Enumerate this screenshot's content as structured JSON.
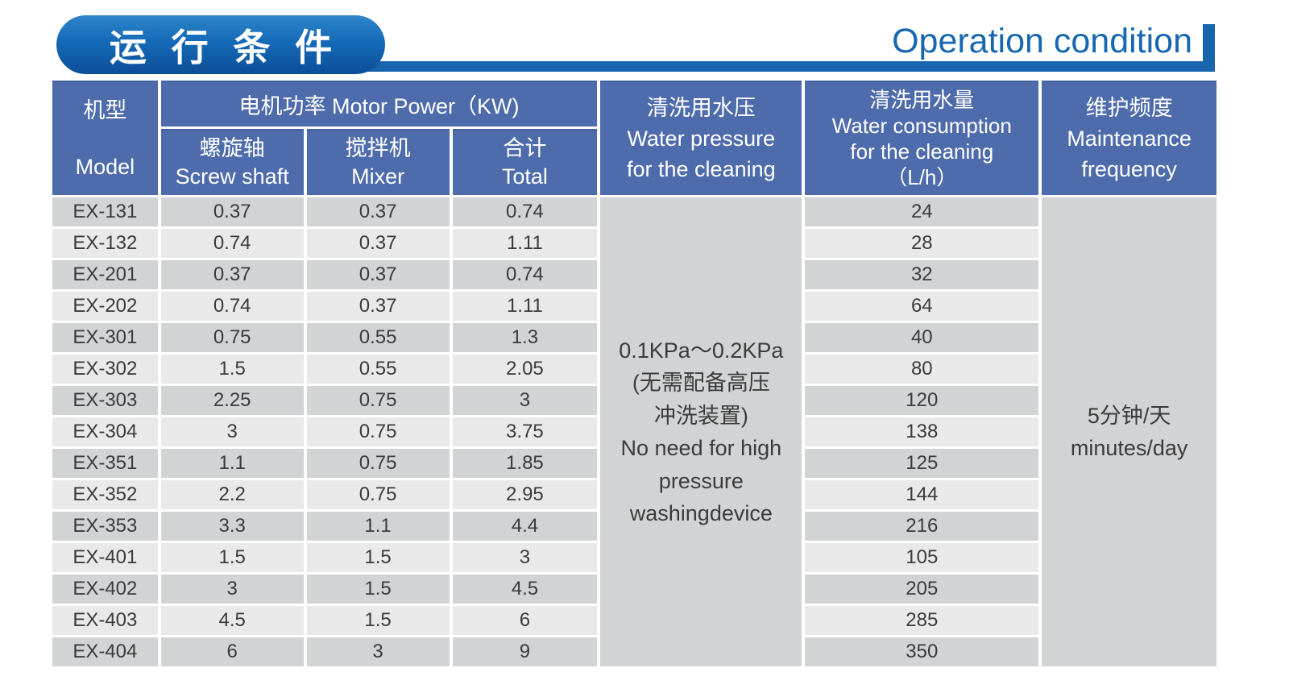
{
  "page": {
    "title_cn": "运 行 条 件",
    "title_en": "Operation condition"
  },
  "colors": {
    "header_bg": "#4e6cab",
    "row_dark": "#d2d3d5",
    "row_light": "#e9e9ea",
    "accent_blue": "#1864ad",
    "title_text_blue": "#1767b1",
    "pill_gradient_top": "#2e85c8",
    "pill_gradient_bottom": "#0c4e96",
    "body_text": "#3b3b3b"
  },
  "table": {
    "headers": {
      "model": "机型\nModel",
      "motor_power_group": "电机功率  Motor Power（KW)",
      "screw_shaft": "螺旋轴\nScrew shaft",
      "mixer": "搅拌机\nMixer",
      "total": "合计\nTotal",
      "water_pressure": "清洗用水压\nWater pressure\nfor the cleaning",
      "water_consumption": "清洗用水量\nWater consumption\nfor the cleaning\n（L/h）",
      "maintenance": "维护频度\nMaintenance\nfrequency"
    },
    "merged_cells": {
      "water_pressure": "0.1KPa～0.2KPa\n(无需配备高压\n冲洗装置)\nNo need for high\npressure\nwashingdevice",
      "maintenance": "5分钟/天\nminutes/day"
    },
    "rows": [
      {
        "model": "EX-131",
        "screw_shaft": "0.37",
        "mixer": "0.37",
        "total": "0.74",
        "water_consumption": "24"
      },
      {
        "model": "EX-132",
        "screw_shaft": "0.74",
        "mixer": "0.37",
        "total": "1.11",
        "water_consumption": "28"
      },
      {
        "model": "EX-201",
        "screw_shaft": "0.37",
        "mixer": "0.37",
        "total": "0.74",
        "water_consumption": "32"
      },
      {
        "model": "EX-202",
        "screw_shaft": "0.74",
        "mixer": "0.37",
        "total": "1.11",
        "water_consumption": "64"
      },
      {
        "model": "EX-301",
        "screw_shaft": "0.75",
        "mixer": "0.55",
        "total": "1.3",
        "water_consumption": "40"
      },
      {
        "model": "EX-302",
        "screw_shaft": "1.5",
        "mixer": "0.55",
        "total": "2.05",
        "water_consumption": "80"
      },
      {
        "model": "EX-303",
        "screw_shaft": "2.25",
        "mixer": "0.75",
        "total": "3",
        "water_consumption": "120"
      },
      {
        "model": "EX-304",
        "screw_shaft": "3",
        "mixer": "0.75",
        "total": "3.75",
        "water_consumption": "138"
      },
      {
        "model": "EX-351",
        "screw_shaft": "1.1",
        "mixer": "0.75",
        "total": "1.85",
        "water_consumption": "125"
      },
      {
        "model": "EX-352",
        "screw_shaft": "2.2",
        "mixer": "0.75",
        "total": "2.95",
        "water_consumption": "144"
      },
      {
        "model": "EX-353",
        "screw_shaft": "3.3",
        "mixer": "1.1",
        "total": "4.4",
        "water_consumption": "216"
      },
      {
        "model": "EX-401",
        "screw_shaft": "1.5",
        "mixer": "1.5",
        "total": "3",
        "water_consumption": "105"
      },
      {
        "model": "EX-402",
        "screw_shaft": "3",
        "mixer": "1.5",
        "total": "4.5",
        "water_consumption": "205"
      },
      {
        "model": "EX-403",
        "screw_shaft": "4.5",
        "mixer": "1.5",
        "total": "6",
        "water_consumption": "285"
      },
      {
        "model": "EX-404",
        "screw_shaft": "6",
        "mixer": "3",
        "total": "9",
        "water_consumption": "350"
      }
    ]
  }
}
